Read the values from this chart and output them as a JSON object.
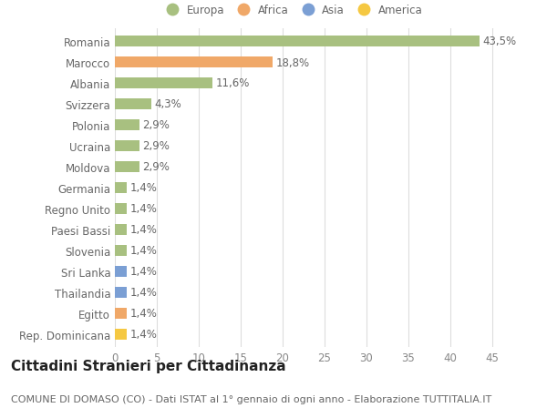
{
  "categories": [
    "Rep. Dominicana",
    "Egitto",
    "Thailandia",
    "Sri Lanka",
    "Slovenia",
    "Paesi Bassi",
    "Regno Unito",
    "Germania",
    "Moldova",
    "Ucraina",
    "Polonia",
    "Svizzera",
    "Albania",
    "Marocco",
    "Romania"
  ],
  "values": [
    1.4,
    1.4,
    1.4,
    1.4,
    1.4,
    1.4,
    1.4,
    1.4,
    2.9,
    2.9,
    2.9,
    4.3,
    11.6,
    18.8,
    43.5
  ],
  "labels": [
    "1,4%",
    "1,4%",
    "1,4%",
    "1,4%",
    "1,4%",
    "1,4%",
    "1,4%",
    "1,4%",
    "2,9%",
    "2,9%",
    "2,9%",
    "4,3%",
    "11,6%",
    "18,8%",
    "43,5%"
  ],
  "colors": [
    "#f5c842",
    "#f0a868",
    "#7b9fd4",
    "#7b9fd4",
    "#a8c080",
    "#a8c080",
    "#a8c080",
    "#a8c080",
    "#a8c080",
    "#a8c080",
    "#a8c080",
    "#a8c080",
    "#a8c080",
    "#f0a868",
    "#a8c080"
  ],
  "legend_labels": [
    "Europa",
    "Africa",
    "Asia",
    "America"
  ],
  "legend_colors": [
    "#a8c080",
    "#f0a868",
    "#7b9fd4",
    "#f5c842"
  ],
  "title": "Cittadini Stranieri per Cittadinanza",
  "subtitle": "COMUNE DI DOMASO (CO) - Dati ISTAT al 1° gennaio di ogni anno - Elaborazione TUTTITALIA.IT",
  "xlim": [
    0,
    47
  ],
  "xticks": [
    0,
    5,
    10,
    15,
    20,
    25,
    30,
    35,
    40,
    45
  ],
  "bg_color": "#ffffff",
  "grid_color": "#dddddd",
  "bar_height": 0.55,
  "label_fontsize": 8.5,
  "tick_fontsize": 8.5,
  "title_fontsize": 11,
  "subtitle_fontsize": 8
}
